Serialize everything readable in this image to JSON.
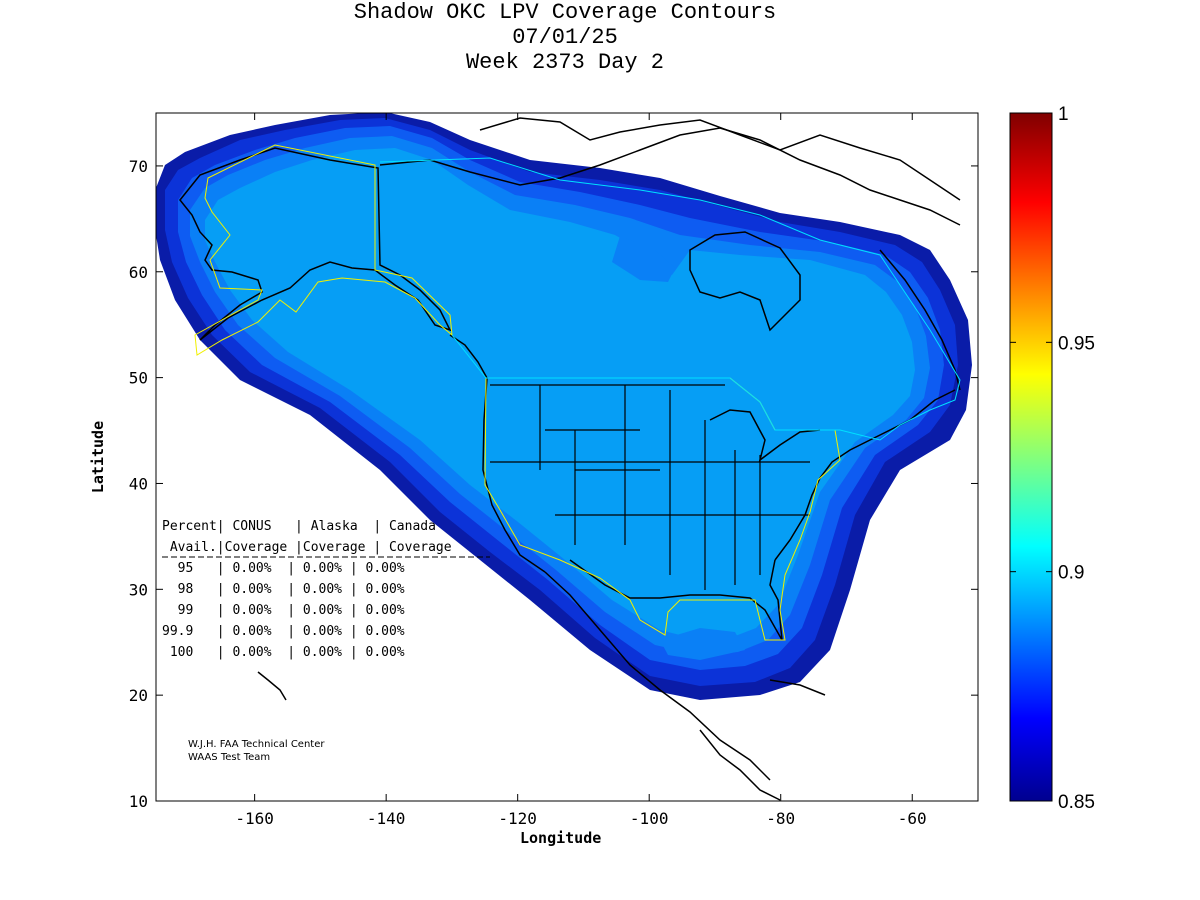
{
  "title": {
    "line1": "Shadow OKC LPV Coverage Contours",
    "line2": "07/01/25",
    "line3": "Week 2373 Day 2"
  },
  "axes": {
    "xlabel": "Longitude",
    "ylabel": "Latitude",
    "xlim": [
      -175,
      -50
    ],
    "ylim": [
      10,
      75
    ],
    "xticks": [
      -160,
      -140,
      -120,
      -100,
      -80,
      -60
    ],
    "yticks": [
      10,
      20,
      30,
      40,
      50,
      60,
      70
    ]
  },
  "colorbar": {
    "min": 0.85,
    "max": 1,
    "ticks": [
      {
        "value": 0.85,
        "label": "0.85"
      },
      {
        "value": 0.9,
        "label": "0.9"
      },
      {
        "value": 0.95,
        "label": "0.95"
      },
      {
        "value": 1,
        "label": "1"
      }
    ]
  },
  "stats_table": {
    "header1": "Percent| CONUS   | Alaska  | Canada",
    "header2": " Avail.|Coverage |Coverage | Coverage",
    "rows": [
      "  95   | 0.00%  | 0.00% | 0.00%",
      "  98   | 0.00%  | 0.00% | 0.00%",
      "  99   | 0.00%  | 0.00% | 0.00%",
      "99.9   | 0.00%  | 0.00% | 0.00%",
      " 100   | 0.00%  | 0.00% | 0.00%"
    ]
  },
  "credit": {
    "line1": "W.J.H. FAA Technical Center",
    "line2": "WAAS Test Team"
  },
  "colors": {
    "band_outer": "#0a1ca8",
    "band_2": "#0c33d8",
    "band_3": "#0e5cf2",
    "band_4": "#0a80f6",
    "band_core": "#069ef5",
    "service_boundary": "#f0f000",
    "coast_line": "#000000"
  }
}
